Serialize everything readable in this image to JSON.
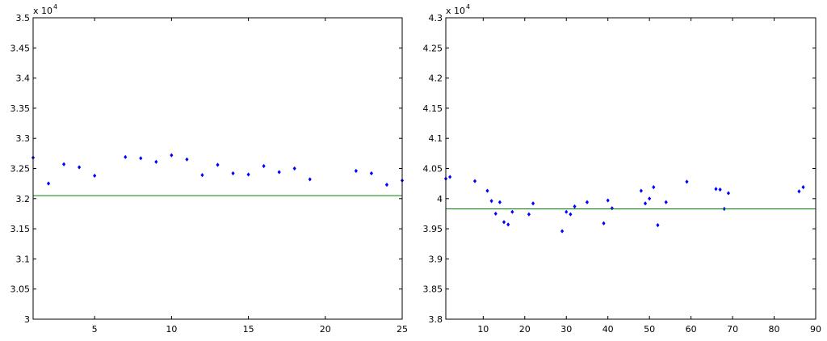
{
  "chart_data": [
    {
      "type": "scatter",
      "title": "",
      "xlabel": "",
      "ylabel": "",
      "xlim": [
        1,
        25
      ],
      "ylim": [
        30000,
        35000
      ],
      "grid": false,
      "y_exponent_label": "x 10",
      "y_exponent_power": "4",
      "xticks": [
        5,
        10,
        15,
        20,
        25
      ],
      "xtick_labels": [
        "5",
        "10",
        "15",
        "20",
        "25"
      ],
      "yticks": [
        30000,
        30500,
        31000,
        31500,
        32000,
        32500,
        33000,
        33500,
        34000,
        34500,
        35000
      ],
      "ytick_labels": [
        "3",
        "3.05",
        "3.1",
        "3.15",
        "3.2",
        "3.25",
        "3.3",
        "3.35",
        "3.4",
        "3.45",
        "3.5"
      ],
      "series": [
        {
          "kind": "scatter",
          "color": "#0000ff",
          "marker": "diamond",
          "x": [
            1,
            2,
            3,
            4,
            5,
            7,
            8,
            9,
            10,
            11,
            12,
            13,
            14,
            15,
            16,
            17,
            18,
            19,
            22,
            23,
            24,
            25
          ],
          "y": [
            32680,
            32250,
            32570,
            32520,
            32380,
            32690,
            32670,
            32610,
            32720,
            32650,
            32390,
            32560,
            32420,
            32400,
            32540,
            32440,
            32500,
            32320,
            32460,
            32420,
            32230,
            32300
          ]
        },
        {
          "kind": "line",
          "color": "#008000",
          "x": [
            1,
            25
          ],
          "y": [
            32050,
            32050
          ]
        }
      ]
    },
    {
      "type": "scatter",
      "title": "",
      "xlabel": "",
      "ylabel": "",
      "xlim": [
        1,
        90
      ],
      "ylim": [
        38000,
        43000
      ],
      "grid": false,
      "y_exponent_label": "x 10",
      "y_exponent_power": "4",
      "xticks": [
        10,
        20,
        30,
        40,
        50,
        60,
        70,
        80,
        90
      ],
      "xtick_labels": [
        "10",
        "20",
        "30",
        "40",
        "50",
        "60",
        "70",
        "80",
        "90"
      ],
      "yticks": [
        38000,
        38500,
        39000,
        39500,
        40000,
        40500,
        41000,
        41500,
        42000,
        42500,
        43000
      ],
      "ytick_labels": [
        "3.8",
        "3.85",
        "3.9",
        "3.95",
        "4",
        "4.05",
        "4.1",
        "4.15",
        "4.2",
        "4.25",
        "4.3"
      ],
      "series": [
        {
          "kind": "scatter",
          "color": "#0000ff",
          "marker": "diamond",
          "x": [
            1,
            2,
            8,
            11,
            12,
            13,
            14,
            15,
            16,
            17,
            21,
            22,
            29,
            30,
            31,
            32,
            35,
            39,
            40,
            41,
            48,
            49,
            50,
            51,
            52,
            54,
            59,
            66,
            67,
            68,
            69,
            86,
            87
          ],
          "y": [
            40330,
            40360,
            40290,
            40130,
            39960,
            39750,
            39940,
            39610,
            39570,
            39780,
            39740,
            39920,
            39460,
            39780,
            39740,
            39870,
            39940,
            39590,
            39970,
            39840,
            40130,
            39920,
            40000,
            40190,
            39560,
            39940,
            40280,
            40160,
            40150,
            39830,
            40090,
            40120,
            40190
          ]
        },
        {
          "kind": "line",
          "color": "#008000",
          "x": [
            1,
            90
          ],
          "y": [
            39830,
            39830
          ]
        }
      ]
    }
  ]
}
